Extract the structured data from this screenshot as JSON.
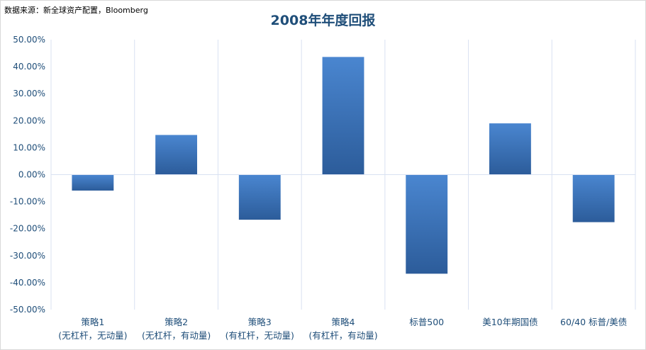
{
  "source_note": "数据来源：新全球资产配置，Bloomberg",
  "chart_data": {
    "type": "bar",
    "title": "2008年年度回报",
    "categories": [
      [
        "策略1",
        "(无杠杆，无动量)"
      ],
      [
        "策略2",
        "(无杠杆，有动量)"
      ],
      [
        "策略3",
        "(有杠杆，无动量)"
      ],
      [
        "策略4",
        "(有杠杆，有动量)"
      ],
      [
        "标普500"
      ],
      [
        "美10年期国债"
      ],
      [
        "60/40 标普/美债"
      ]
    ],
    "values": [
      -5.9,
      14.7,
      -16.7,
      43.6,
      -36.7,
      19.0,
      -17.6
    ],
    "ylim": [
      -50,
      50
    ],
    "yticks": [
      "50.00%",
      "40.00%",
      "30.00%",
      "20.00%",
      "10.00%",
      "0.00%",
      "-10.00%",
      "-20.00%",
      "-30.00%",
      "-40.00%",
      "-50.00%"
    ],
    "xlabel": "",
    "ylabel": "",
    "grid": "vertical",
    "colors": {
      "bar_top": "#4a86d0",
      "bar_bottom": "#2c5c9a",
      "text": "#1f4e79",
      "grid": "#d9e1f2",
      "axis": "#bfbfbf"
    }
  }
}
